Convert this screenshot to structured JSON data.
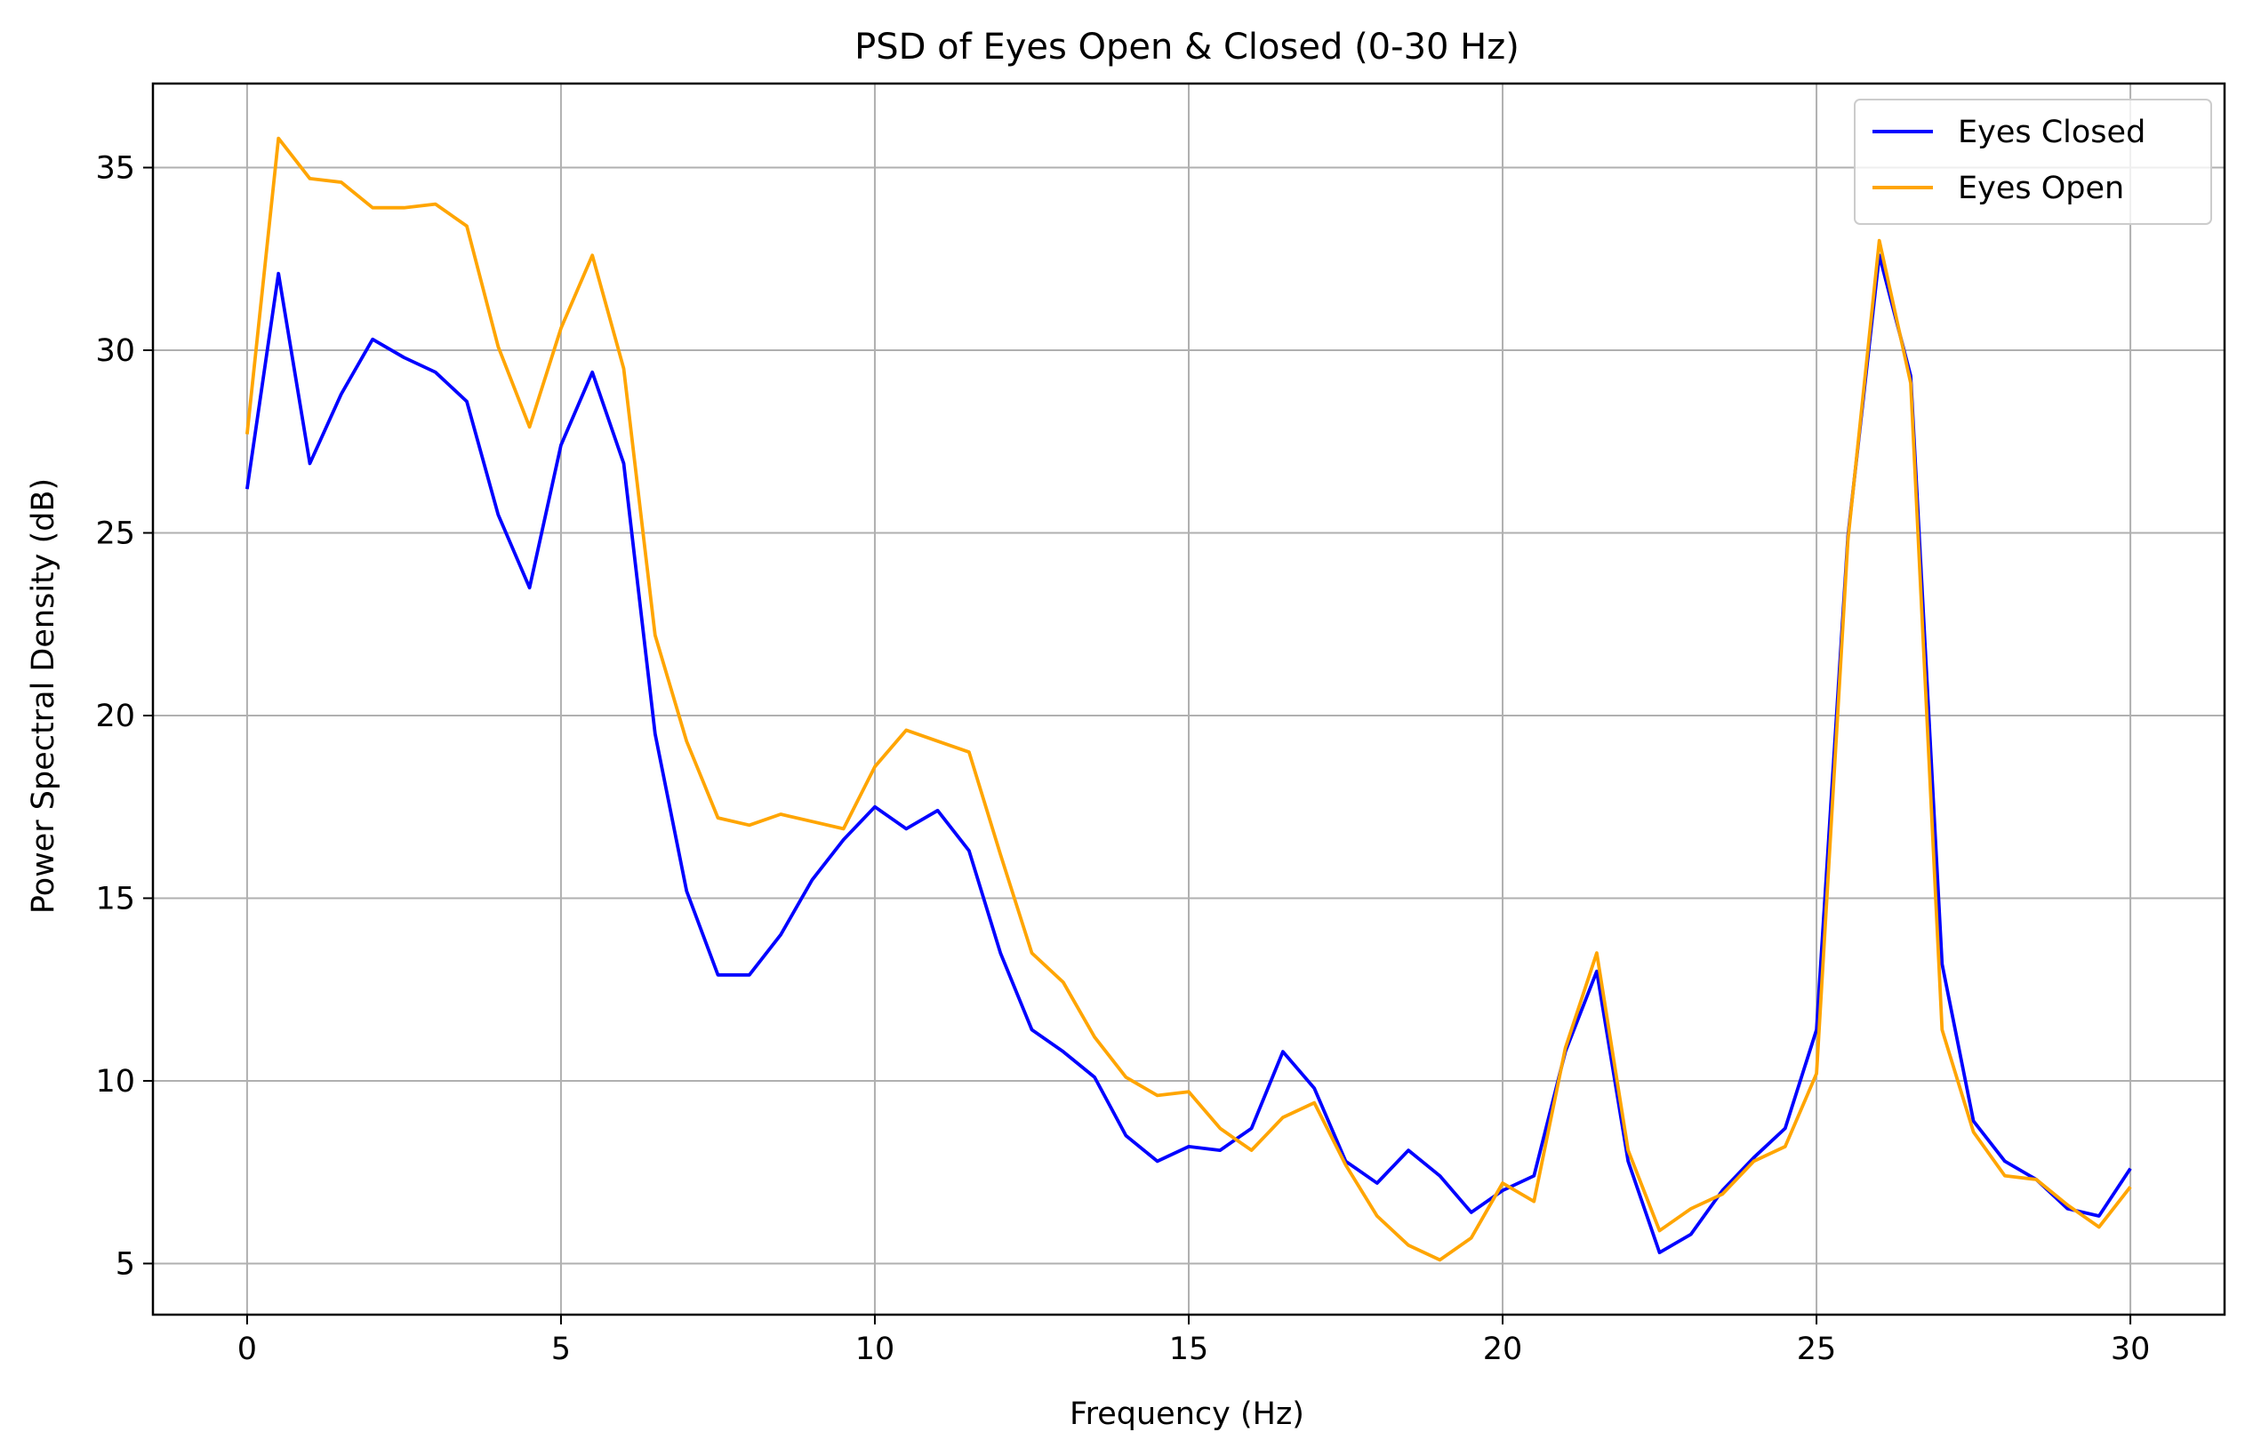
{
  "chart_data": {
    "type": "line",
    "title": "PSD of Eyes Open & Closed (0-30 Hz)",
    "xlabel": "Frequency (Hz)",
    "ylabel": "Power Spectral Density (dB)",
    "xlim": [
      -1.5,
      31.5
    ],
    "ylim": [
      3.6,
      37.3
    ],
    "xticks": [
      0,
      5,
      10,
      15,
      20,
      25,
      30
    ],
    "xtick_labels": [
      "0",
      "5",
      "10",
      "15",
      "20",
      "25",
      "30"
    ],
    "yticks": [
      5,
      10,
      15,
      20,
      25,
      30,
      35
    ],
    "ytick_labels": [
      "5",
      "10",
      "15",
      "20",
      "25",
      "30",
      "35"
    ],
    "grid": true,
    "legend_position": "top-right",
    "x": [
      0,
      0.5,
      1,
      1.5,
      2,
      2.5,
      3,
      3.5,
      4,
      4.5,
      5,
      5.5,
      6,
      6.5,
      7,
      7.5,
      8,
      8.5,
      9,
      9.5,
      10,
      10.5,
      11,
      11.5,
      12,
      12.5,
      13,
      13.5,
      14,
      14.5,
      15,
      15.5,
      16,
      16.5,
      17,
      17.5,
      18,
      18.5,
      19,
      19.5,
      20,
      20.5,
      21,
      21.5,
      22,
      22.5,
      23,
      23.5,
      24,
      24.5,
      25,
      25.5,
      26,
      26.5,
      27,
      27.5,
      28,
      28.5,
      29,
      29.5,
      30
    ],
    "series": [
      {
        "name": "Eyes Closed",
        "color": "#0000ff",
        "values": [
          26.2,
          32.1,
          26.9,
          28.8,
          30.3,
          29.8,
          29.4,
          28.6,
          25.5,
          23.5,
          27.4,
          29.4,
          26.9,
          19.5,
          15.2,
          12.9,
          12.9,
          14.0,
          15.5,
          16.6,
          17.5,
          16.9,
          17.4,
          16.3,
          13.5,
          11.4,
          10.8,
          10.1,
          8.5,
          7.8,
          8.2,
          8.1,
          8.7,
          10.8,
          9.8,
          7.8,
          7.2,
          8.1,
          7.4,
          6.4,
          7.0,
          7.4,
          10.8,
          13.0,
          7.8,
          5.3,
          5.8,
          7.0,
          7.9,
          8.7,
          11.4,
          24.9,
          32.6,
          29.3,
          13.2,
          8.9,
          7.8,
          7.3,
          6.5,
          6.3,
          7.6
        ]
      },
      {
        "name": "Eyes Open",
        "color": "#ffa500",
        "values": [
          27.7,
          35.8,
          34.7,
          34.6,
          33.9,
          33.9,
          34.0,
          33.4,
          30.1,
          27.9,
          30.6,
          32.6,
          29.5,
          22.2,
          19.3,
          17.2,
          17.0,
          17.3,
          17.1,
          16.9,
          18.6,
          19.6,
          19.3,
          19.0,
          16.2,
          13.5,
          12.7,
          11.2,
          10.1,
          9.6,
          9.7,
          8.7,
          8.1,
          9.0,
          9.4,
          7.7,
          6.3,
          5.5,
          5.1,
          5.7,
          7.2,
          6.7,
          10.9,
          13.5,
          8.1,
          5.9,
          6.5,
          6.9,
          7.8,
          8.2,
          10.2,
          24.8,
          33.0,
          29.1,
          11.4,
          8.6,
          7.4,
          7.3,
          6.6,
          6.0,
          7.1
        ]
      }
    ]
  },
  "colors": {
    "grid": "#b0b0b0",
    "axes": "#000000",
    "background": "#ffffff"
  }
}
